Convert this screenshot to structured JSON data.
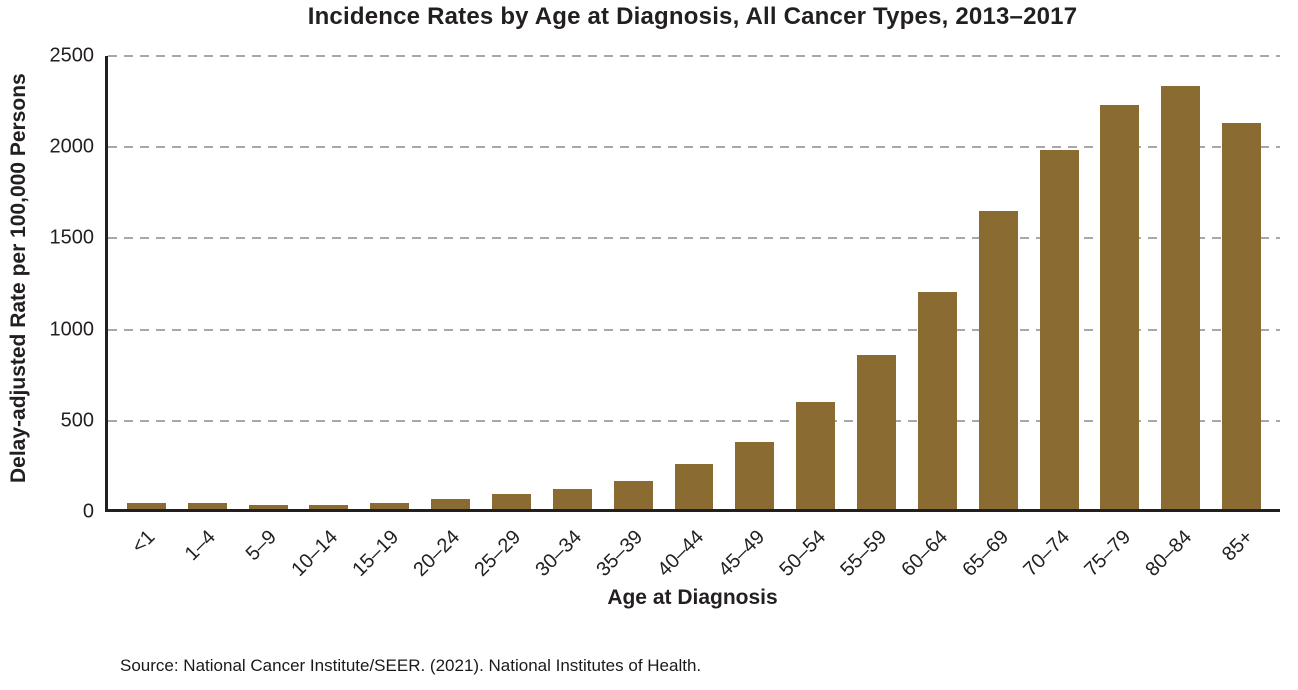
{
  "chart_data": {
    "type": "bar",
    "title": "Incidence Rates by Age at Diagnosis, All Cancer Types, 2013–2017",
    "xlabel": "Age at Diagnosis",
    "ylabel": "Delay-adjusted Rate per 100,000 Persons",
    "categories": [
      "<1",
      "1–4",
      "5–9",
      "10–14",
      "15–19",
      "20–24",
      "25–29",
      "30–34",
      "35–39",
      "40–44",
      "45–49",
      "50–54",
      "55–59",
      "60–64",
      "65–69",
      "70–74",
      "75–79",
      "80–84",
      "85+"
    ],
    "values": [
      35,
      35,
      20,
      20,
      35,
      55,
      85,
      110,
      155,
      245,
      370,
      585,
      845,
      1190,
      1635,
      1970,
      2215,
      2320,
      2115
    ],
    "ylim": [
      0,
      2500
    ],
    "yticks": [
      0,
      500,
      1000,
      1500,
      2000,
      2500
    ],
    "grid": "dashed-horizontal",
    "legend": "none",
    "bar_color": "#8a6b32",
    "axis_color": "#231f20",
    "gridline_color": "#a8a8a8"
  },
  "source": "Source: National Cancer Institute/SEER. (2021). National Institutes of Health."
}
